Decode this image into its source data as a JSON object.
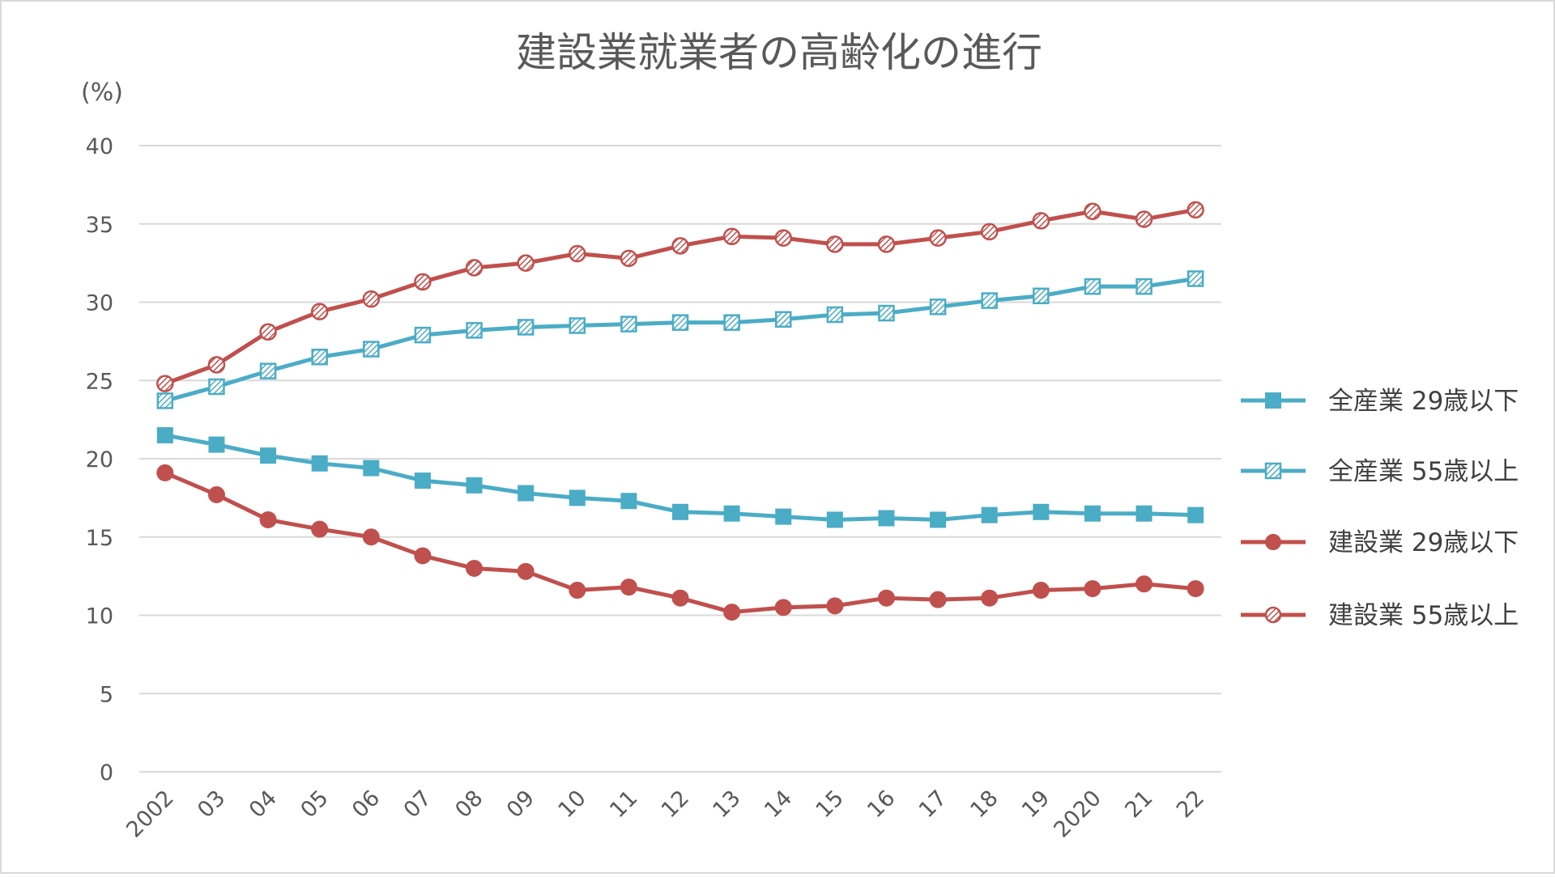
{
  "chart_data": {
    "type": "line",
    "title": "建設業就業者の高齢化の進行",
    "unit_label": "(%)",
    "xlabel": "",
    "ylabel": "",
    "ylim": [
      0,
      40
    ],
    "yticks": [
      "0",
      "5",
      "10",
      "15",
      "20",
      "25",
      "30",
      "35",
      "40"
    ],
    "grid": true,
    "legend_position": "right",
    "categories": [
      "2002",
      "03",
      "04",
      "05",
      "06",
      "07",
      "08",
      "09",
      "10",
      "11",
      "12",
      "13",
      "14",
      "15",
      "16",
      "17",
      "18",
      "19",
      "2020",
      "21",
      "22"
    ],
    "series": [
      {
        "name": "全産業 29歳以下",
        "color": "#4bacc6",
        "marker": "square-filled",
        "values": [
          21.5,
          20.9,
          20.2,
          19.7,
          19.4,
          18.6,
          18.3,
          17.8,
          17.5,
          17.3,
          16.6,
          16.5,
          16.3,
          16.1,
          16.2,
          16.1,
          16.4,
          16.6,
          16.5,
          16.5,
          16.4
        ]
      },
      {
        "name": "全産業 55歳以上",
        "color": "#4bacc6",
        "marker": "square-hatched",
        "values": [
          23.7,
          24.6,
          25.6,
          26.5,
          27.0,
          27.9,
          28.2,
          28.4,
          28.5,
          28.6,
          28.7,
          28.7,
          28.9,
          29.2,
          29.3,
          29.7,
          30.1,
          30.4,
          31.0,
          31.0,
          31.5
        ]
      },
      {
        "name": "建設業 29歳以下",
        "color": "#c0504d",
        "marker": "circle-filled",
        "values": [
          19.1,
          17.7,
          16.1,
          15.5,
          15.0,
          13.8,
          13.0,
          12.8,
          11.6,
          11.8,
          11.1,
          10.2,
          10.5,
          10.6,
          11.1,
          11.0,
          11.1,
          11.6,
          11.7,
          12.0,
          11.7
        ]
      },
      {
        "name": "建設業 55歳以上",
        "color": "#c0504d",
        "marker": "circle-hatched",
        "values": [
          24.8,
          26.0,
          28.1,
          29.4,
          30.2,
          31.3,
          32.2,
          32.5,
          33.1,
          32.8,
          33.6,
          34.2,
          34.1,
          33.7,
          33.7,
          34.1,
          34.5,
          35.2,
          35.8,
          35.3,
          35.9
        ]
      }
    ]
  }
}
